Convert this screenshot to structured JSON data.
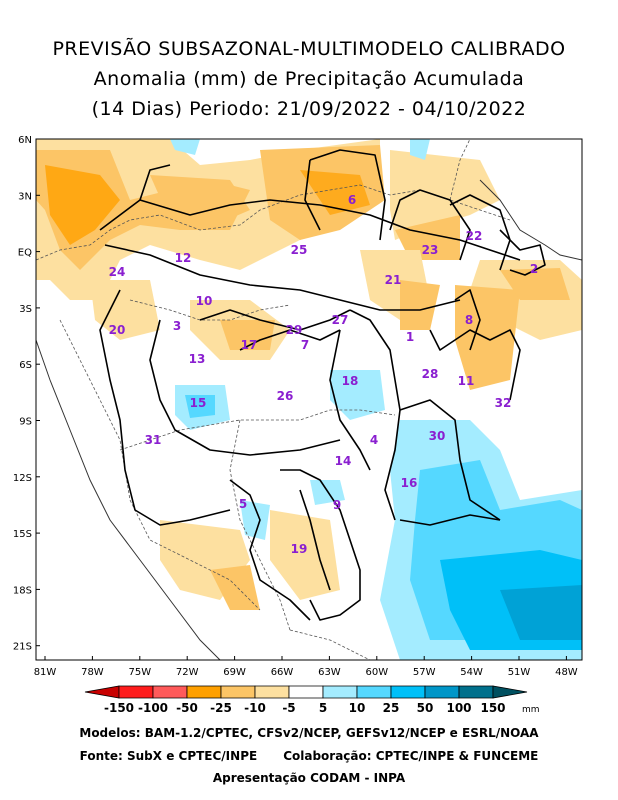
{
  "title": {
    "line1": "PREVISÃO SUBSAZONAL-MULTIMODELO CALIBRADO",
    "line2": "Anomalia (mm) de Precipitação Acumulada",
    "line3": "(14 Dias) Periodo: 21/09/2022 - 04/10/2022"
  },
  "axes": {
    "lat_labels": [
      "6N",
      "3N",
      "EQ",
      "3S",
      "6S",
      "9S",
      "12S",
      "15S",
      "18S",
      "21S"
    ],
    "lon_labels": [
      "81W",
      "78W",
      "75W",
      "72W",
      "69W",
      "66W",
      "63W",
      "60W",
      "57W",
      "54W",
      "51W",
      "48W"
    ]
  },
  "basins": [
    {
      "id": "6",
      "label": "6"
    },
    {
      "id": "25",
      "label": "25"
    },
    {
      "id": "23",
      "label": "23"
    },
    {
      "id": "22",
      "label": "22"
    },
    {
      "id": "2",
      "label": "2"
    },
    {
      "id": "24",
      "label": "24"
    },
    {
      "id": "12",
      "label": "12"
    },
    {
      "id": "21",
      "label": "21"
    },
    {
      "id": "10",
      "label": "10"
    },
    {
      "id": "20",
      "label": "20"
    },
    {
      "id": "3",
      "label": "3"
    },
    {
      "id": "29",
      "label": "29"
    },
    {
      "id": "27",
      "label": "27"
    },
    {
      "id": "1",
      "label": "1"
    },
    {
      "id": "8",
      "label": "8"
    },
    {
      "id": "17",
      "label": "17"
    },
    {
      "id": "7",
      "label": "7"
    },
    {
      "id": "13",
      "label": "13"
    },
    {
      "id": "28",
      "label": "28"
    },
    {
      "id": "11",
      "label": "11"
    },
    {
      "id": "18",
      "label": "18"
    },
    {
      "id": "26",
      "label": "26"
    },
    {
      "id": "15",
      "label": "15"
    },
    {
      "id": "32",
      "label": "32"
    },
    {
      "id": "31",
      "label": "31"
    },
    {
      "id": "4",
      "label": "4"
    },
    {
      "id": "30",
      "label": "30"
    },
    {
      "id": "14",
      "label": "14"
    },
    {
      "id": "16",
      "label": "16"
    },
    {
      "id": "9",
      "label": "9"
    },
    {
      "id": "5",
      "label": "5"
    },
    {
      "id": "19",
      "label": "19"
    }
  ],
  "colorbar": {
    "labels": [
      "-150",
      "-100",
      "-50",
      "-25",
      "-10",
      "-5",
      "5",
      "10",
      "25",
      "50",
      "100",
      "150"
    ],
    "unit": "mm",
    "colors": [
      "#c80000",
      "#ff1c1c",
      "#ff5a5a",
      "#ffa000",
      "#fcc566",
      "#fde0a0",
      "#ffffff",
      "#a4ecff",
      "#55d8ff",
      "#00c0f8",
      "#0096c8",
      "#00708c",
      "#005060"
    ]
  },
  "footer": {
    "line1": "Modelos: BAM-1.2/CPTEC, CFSv2/NCEP, GEFSv12/NCEP e ESRL/NOAA",
    "line2a": "Fonte: SubX e CPTEC/INPE",
    "line2b": "Colaboração: CPTEC/INPE & FUNCEME",
    "line3": "Apresentação CODAM - INPA"
  }
}
